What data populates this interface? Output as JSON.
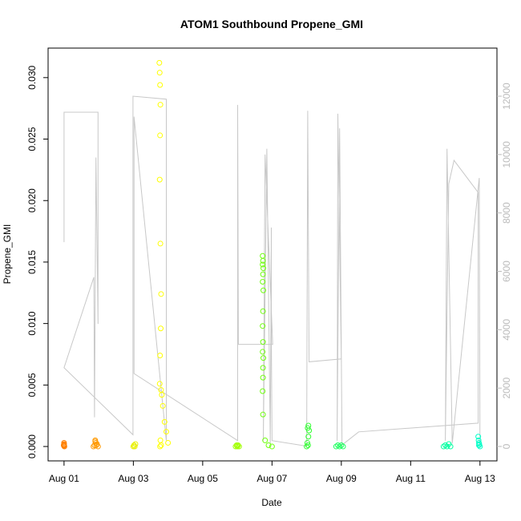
{
  "chart_data": {
    "type": "scatter",
    "title": "ATOM1 Southbound Propene_GMI",
    "x_label": "Date",
    "y_label": "Propene_GMI",
    "xlim": [
      -0.46,
      12.49
    ],
    "xticks": [
      {
        "value": 0,
        "label": "Aug 01"
      },
      {
        "value": 2,
        "label": "Aug 03"
      },
      {
        "value": 4,
        "label": "Aug 05"
      },
      {
        "value": 6,
        "label": "Aug 07"
      },
      {
        "value": 8,
        "label": "Aug 09"
      },
      {
        "value": 10,
        "label": "Aug 11"
      },
      {
        "value": 12,
        "label": "Aug 13"
      }
    ],
    "ylim": [
      -0.00117,
      0.0324
    ],
    "yticks": [
      {
        "value": 0,
        "label": "0.000"
      },
      {
        "value": 0.005,
        "label": "0.005"
      },
      {
        "value": 0.01,
        "label": "0.010"
      },
      {
        "value": 0.015,
        "label": "0.015"
      },
      {
        "value": 0.02,
        "label": "0.020"
      },
      {
        "value": 0.025,
        "label": "0.025"
      },
      {
        "value": 0.03,
        "label": "0.030"
      }
    ],
    "y2lim": [
      -494,
      13648
    ],
    "y2ticks": [
      0,
      2000,
      4000,
      6000,
      8000,
      10000,
      12000
    ],
    "y2_color": "#bbbbbb",
    "series": [
      {
        "color": "#ff8000",
        "x": [
          -0.01,
          0,
          0,
          0.01,
          0,
          0
        ],
        "values": [
          0.0001,
          0.0002,
          0.0003,
          0,
          0.00015,
          5e-05
        ]
      },
      {
        "color": "#ff9900",
        "x": [
          0.85,
          0.88,
          0.9,
          0.92,
          0.95,
          0.98,
          0.9,
          0.93
        ],
        "values": [
          0,
          0.0001,
          0.0005,
          0.0003,
          0.0002,
          0,
          0.0004,
          0.0001
        ]
      },
      {
        "color": "#e8f000",
        "x": [
          2.0,
          2.02,
          2.04,
          2.06
        ],
        "values": [
          0,
          0.0001,
          0,
          0.0002
        ]
      },
      {
        "color": "#ffff00",
        "x": [
          2.75,
          2.76,
          2.77,
          2.78,
          2.77,
          2.76,
          2.78,
          2.8,
          2.79,
          2.77,
          2.76,
          2.8,
          2.82,
          2.85,
          2.9,
          2.95,
          3.0,
          2.8,
          2.78,
          2.77
        ],
        "values": [
          0.0312,
          0.0304,
          0.0294,
          0.0278,
          0.0253,
          0.0217,
          0.0165,
          0.0124,
          0.0096,
          0.0074,
          0.0051,
          0.0046,
          0.0042,
          0.0033,
          0.002,
          0.0012,
          0.0003,
          0.0001,
          0.0005,
          0
        ]
      },
      {
        "color": "#a0ff00",
        "x": [
          4.95,
          4.98,
          5.0,
          5.02,
          5.05
        ],
        "values": [
          0,
          0.0001,
          0,
          0.0001,
          0
        ]
      },
      {
        "color": "#70ff10",
        "x": [
          5.73,
          5.74,
          5.73,
          5.75,
          5.74,
          5.73,
          5.75,
          5.74,
          5.73,
          5.74,
          5.73,
          5.75,
          5.74,
          5.74,
          5.73,
          5.74,
          5.8,
          5.9,
          6.0
        ],
        "values": [
          0.0155,
          0.0151,
          0.0148,
          0.0145,
          0.014,
          0.0134,
          0.0127,
          0.011,
          0.0098,
          0.0085,
          0.0077,
          0.0072,
          0.0064,
          0.0056,
          0.0045,
          0.0026,
          0.0005,
          0.0001,
          0
        ]
      },
      {
        "color": "#30ff30",
        "x": [
          7.0,
          7.02,
          7.05,
          7.07,
          7.05,
          7.03,
          7.04
        ],
        "values": [
          0,
          0.0003,
          0.0008,
          0.0013,
          0.0017,
          0.0015,
          0.0001
        ]
      },
      {
        "color": "#20ff60",
        "x": [
          7.85,
          7.9,
          7.95,
          8.0,
          8.05
        ],
        "values": [
          0,
          0.0001,
          0,
          0.0001,
          0
        ]
      },
      {
        "color": "#00ffa0",
        "x": [
          10.95,
          11.0,
          11.05,
          11.1,
          11.15
        ],
        "values": [
          0,
          0.0001,
          0,
          0.0002,
          0
        ]
      },
      {
        "color": "#00ffc8",
        "x": [
          11.95,
          11.96,
          11.97,
          11.98,
          12.0,
          11.97
        ],
        "values": [
          0.0008,
          0.0005,
          0.0003,
          0.0002,
          0,
          0.0001
        ]
      }
    ],
    "line": {
      "axis": "y2",
      "color": "#c8c8c8",
      "x": [
        0,
        0,
        0.98,
        0.98,
        0.92,
        0.88,
        0.86,
        0,
        1.99,
        1.99,
        2.95,
        2.95,
        2.02,
        2.02,
        5.01,
        5.01,
        5.03,
        6.02,
        5.8,
        5.75,
        5.85,
        5.95,
        5.98,
        5.98,
        6.0,
        7.0,
        7.03,
        7.07,
        8.0,
        7.9,
        7.88,
        7.95,
        8.02,
        8.5,
        11.95,
        11.95,
        11.25,
        11.1,
        11.0,
        11.05,
        11.2,
        11.98,
        12.0
      ],
      "values": [
        7000,
        11450,
        11450,
        4200,
        9900,
        1000,
        5800,
        2700,
        400,
        12000,
        11900,
        200,
        11300,
        2500,
        200,
        11700,
        3500,
        3500,
        10000,
        200,
        10200,
        100,
        7500,
        3900,
        200,
        10,
        11500,
        2900,
        3000,
        11400,
        200,
        10900,
        50,
        500,
        800,
        8700,
        9800,
        9000,
        200,
        10200,
        100,
        9200,
        0
      ]
    }
  }
}
